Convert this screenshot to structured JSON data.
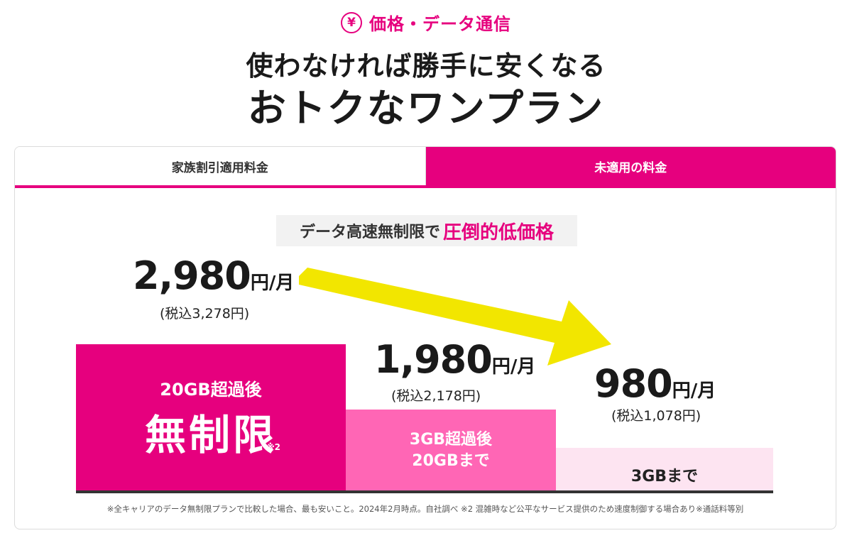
{
  "header": {
    "category_icon": "¥",
    "category_label": "価格・データ通信",
    "headline_line1": "使わなければ勝手に安くなる",
    "headline_line2": "おトクなワンプラン"
  },
  "tabs": [
    {
      "label": "家族割引適用料金",
      "active": false
    },
    {
      "label": "未適用の料金",
      "active": true
    }
  ],
  "tagline": {
    "text": "データ高速無制限で",
    "accent": "圧倒的低価格"
  },
  "prices": {
    "top": {
      "amount": "2,980",
      "unit": "円/月",
      "tax": "(税込3,278円)"
    },
    "mid": {
      "amount": "1,980",
      "unit": "円/月",
      "tax": "(税込2,178円)"
    },
    "low": {
      "amount": "980",
      "unit": "円/月",
      "tax": "(税込1,078円)"
    }
  },
  "bars": {
    "unlimited": {
      "line1": "20GB超過後",
      "line2": "無制限",
      "note": "※2"
    },
    "mid": {
      "line1": "3GB超過後",
      "line2": "20GBまで"
    },
    "low": {
      "line1": "3GBまで"
    }
  },
  "footnote": "※全キャリアのデータ無制限プランで比較した場合、最も安いこと。2024年2月時点。自社調べ ※2 混雑時など公平なサービス提供のため速度制御する場合あり※通話料等別",
  "colors": {
    "brand": "#e6007e",
    "mid_pink": "#ff66b5",
    "light_pink": "#fde4f1",
    "arrow": "#f2e600"
  }
}
